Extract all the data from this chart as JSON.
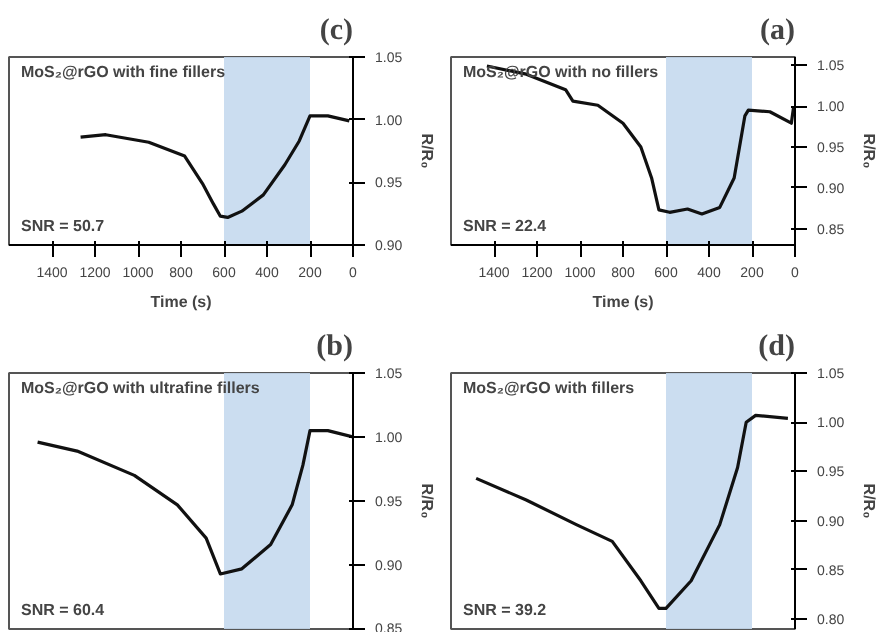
{
  "chart_data": [
    {
      "type": "line",
      "title": "(c)",
      "xlabel": "Time (s)",
      "ylabel": "R/R₀",
      "annotations": [
        "MoS₂@rGO with fine fillers",
        "SNR = 50.7"
      ],
      "x": [
        1267,
        1150,
        950,
        783,
        700,
        650,
        617,
        583,
        517,
        417,
        317,
        250,
        200,
        117,
        17
      ],
      "series": [
        {
          "color": "#111111",
          "values": [
            0.986,
            0.988,
            0.982,
            0.971,
            0.949,
            0.933,
            0.923,
            0.922,
            0.927,
            0.94,
            0.964,
            0.983,
            1.003,
            1.003,
            0.999
          ]
        }
      ],
      "xlim": [
        1600,
        0
      ],
      "xticks": [
        0,
        200,
        400,
        600,
        800,
        1000,
        1200,
        1400
      ],
      "ylim": [
        0.9,
        1.05
      ],
      "yticks": [
        {
          "value": 0.9,
          "label": "0.90"
        },
        0.95,
        {
          "value": 1,
          "label": "1.00"
        },
        1.05
      ],
      "bands": [
        {
          "axis": "x",
          "from": 200,
          "to": 600,
          "color": "#c5d9ee"
        }
      ],
      "grid": false,
      "marker": "none",
      "line_style": "solid"
    },
    {
      "type": "line",
      "title": "(a)",
      "xlabel": "Time (s)",
      "ylabel": "R/R₀",
      "annotations": [
        "MoS₂@rGO with no fillers",
        "SNR = 22.4"
      ],
      "x": [
        1433,
        1250,
        1067,
        1033,
        917,
        800,
        717,
        667,
        633,
        583,
        500,
        433,
        350,
        283,
        233,
        217,
        117,
        17,
        7
      ],
      "series": [
        {
          "color": "#111111",
          "values": [
            1.049,
            1.039,
            1.02,
            1.006,
            1.001,
            0.979,
            0.95,
            0.912,
            0.873,
            0.87,
            0.874,
            0.868,
            0.876,
            0.912,
            0.988,
            0.995,
            0.993,
            0.979,
            0.998
          ]
        }
      ],
      "xlim": [
        1600,
        0
      ],
      "xticks": [
        0,
        200,
        400,
        600,
        800,
        1000,
        1200,
        1400
      ],
      "ylim": [
        0.83,
        1.06
      ],
      "yticks": [
        0.85,
        {
          "value": 0.9,
          "label": "0.90"
        },
        0.95,
        {
          "value": 1,
          "label": "1.00"
        },
        1.05
      ],
      "bands": [
        {
          "axis": "x",
          "from": 200,
          "to": 600,
          "color": "#c5d9ee"
        }
      ],
      "grid": false,
      "marker": "none",
      "line_style": "solid"
    },
    {
      "type": "line",
      "title": "(b)",
      "ylabel": "R/R₀",
      "annotations": [
        "MoS₂@rGO with ultrafine fillers",
        "SNR = 60.4"
      ],
      "x": [
        1467,
        1283,
        1017,
        817,
        683,
        617,
        517,
        383,
        283,
        233,
        200,
        117,
        0
      ],
      "series": [
        {
          "color": "#111111",
          "values": [
            0.996,
            0.989,
            0.97,
            0.947,
            0.921,
            0.893,
            0.897,
            0.916,
            0.947,
            0.978,
            1.005,
            1.005,
            1.0
          ]
        }
      ],
      "xlim": [
        1600,
        0
      ],
      "ylim": [
        0.85,
        1.05
      ],
      "yticks": [
        0.85,
        {
          "value": 0.9,
          "label": "0.90"
        },
        0.95,
        {
          "value": 1,
          "label": "1.00"
        },
        1.05
      ],
      "tick_labels": "y",
      "bands": [
        {
          "axis": "x",
          "from": 200,
          "to": 600,
          "color": "#c5d9ee"
        }
      ],
      "grid": false,
      "marker": "none",
      "line_style": "solid"
    },
    {
      "type": "line",
      "title": "(d)",
      "ylabel": "R/R₀",
      "annotations": [
        "MoS₂@rGO with fillers",
        "SNR = 39.2"
      ],
      "x": [
        1483,
        1250,
        1017,
        850,
        717,
        633,
        600,
        483,
        350,
        267,
        227,
        183,
        33
      ],
      "series": [
        {
          "color": "#111111",
          "values": [
            0.943,
            0.921,
            0.896,
            0.879,
            0.839,
            0.811,
            0.811,
            0.839,
            0.896,
            0.954,
            1.0,
            1.007,
            1.004
          ]
        }
      ],
      "xlim": [
        1600,
        0
      ],
      "ylim": [
        0.79,
        1.05
      ],
      "yticks": [
        {
          "value": 0.8,
          "label": "0.80"
        },
        0.85,
        {
          "value": 0.9,
          "label": "0.90"
        },
        0.95,
        {
          "value": 1,
          "label": "1.00"
        },
        1.05
      ],
      "tick_labels": "y",
      "bands": [
        {
          "axis": "x",
          "from": 200,
          "to": 600,
          "color": "#c5d9ee"
        }
      ],
      "grid": false,
      "marker": "none",
      "line_style": "solid"
    }
  ]
}
